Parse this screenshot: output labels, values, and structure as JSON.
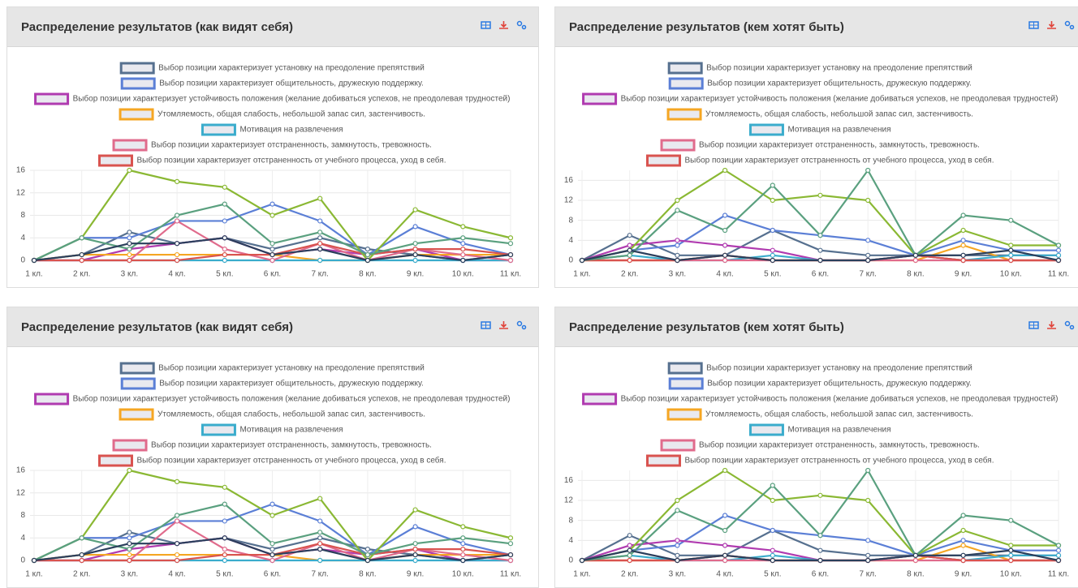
{
  "chart_data": [
    {
      "type": "line",
      "title": "Распределение результатов (как видят себя)",
      "categories": [
        "1 кл.",
        "2 кл.",
        "3 кл.",
        "4 кл.",
        "5 кл.",
        "6 кл.",
        "7 кл.",
        "8 кл.",
        "9 кл.",
        "10 кл.",
        "11 кл."
      ],
      "ylim": [
        0,
        16
      ],
      "yticks": [
        0,
        4,
        8,
        12,
        16
      ],
      "grid": true,
      "series": [
        {
          "name": "Выбор позиции характеризует установку на преодоление препятствий",
          "color": "#56708f",
          "values": [
            0,
            1,
            5,
            3,
            4,
            2,
            4,
            2,
            1,
            0,
            1
          ]
        },
        {
          "name": "Выбор позиции характеризует общительность, дружескую поддержку.",
          "color": "#5b7fd6",
          "values": [
            0,
            4,
            4,
            7,
            7,
            10,
            7,
            1,
            6,
            3,
            1
          ]
        },
        {
          "name": "Выбор позиции характеризует устойчивость положения (желание добиваться успехов, не преодолевая трудностей)",
          "color": "#b03bb0",
          "values": [
            0,
            0,
            2,
            3,
            4,
            1,
            2,
            1,
            2,
            0,
            0
          ]
        },
        {
          "name": "Утомляемость, общая слабость, небольшой запас сил, застенчивость.",
          "color": "#f5a623",
          "values": [
            0,
            1,
            1,
            1,
            1,
            1,
            0,
            0,
            1,
            1,
            1
          ]
        },
        {
          "name": "Мотивация на развлечения",
          "color": "#3aaccc",
          "values": [
            0,
            0,
            0,
            0,
            0,
            0,
            0,
            0,
            0,
            0,
            0
          ]
        },
        {
          "name": "Выбор позиции характеризует отстраненность, замкнутость, тревожность.",
          "color": "#e06b8c",
          "values": [
            0,
            0,
            0,
            7,
            2,
            0,
            3,
            0,
            2,
            1,
            0
          ]
        },
        {
          "name": "Выбор позиции характеризует отстраненность от учебного процесса, уход в себя.",
          "color": "#d9534f",
          "values": [
            0,
            0,
            0,
            0,
            1,
            1,
            3,
            1,
            2,
            2,
            1
          ]
        },
        {
          "color": "#8ab833",
          "values": [
            0,
            4,
            16,
            14,
            13,
            8,
            11,
            0,
            9,
            6,
            4
          ]
        },
        {
          "color": "#5aa07f",
          "values": [
            0,
            4,
            2,
            8,
            10,
            3,
            5,
            1,
            3,
            4,
            3
          ]
        },
        {
          "color": "#2b3f5c",
          "values": [
            0,
            1,
            3,
            3,
            4,
            1,
            2,
            0,
            1,
            0,
            1
          ]
        }
      ]
    },
    {
      "type": "line",
      "title": "Распределение результатов (кем хотят быть)",
      "categories": [
        "1 кл.",
        "2 кл.",
        "3 кл.",
        "4 кл.",
        "5 кл.",
        "6 кл.",
        "7 кл.",
        "8 кл.",
        "9 кл.",
        "10 кл.",
        "11 кл."
      ],
      "ylim": [
        0,
        18
      ],
      "yticks": [
        0,
        4,
        8,
        12,
        16
      ],
      "grid": true,
      "series": [
        {
          "name": "Выбор позиции характеризует установку на преодоление препятствий",
          "color": "#56708f",
          "values": [
            0,
            5,
            1,
            1,
            6,
            2,
            1,
            1,
            1,
            1,
            1
          ]
        },
        {
          "name": "Выбор позиции характеризует общительность, дружескую поддержку.",
          "color": "#5b7fd6",
          "values": [
            0,
            2,
            3,
            9,
            6,
            5,
            4,
            1,
            4,
            2,
            2
          ]
        },
        {
          "name": "Выбор позиции характеризует устойчивость положения (желание добиваться успехов, не преодолевая трудностей)",
          "color": "#b03bb0",
          "values": [
            0,
            3,
            4,
            3,
            2,
            0,
            0,
            1,
            0,
            0,
            0
          ]
        },
        {
          "name": "Утомляемость, общая слабость, небольшой запас сил, застенчивость.",
          "color": "#f5a623",
          "values": [
            0,
            0,
            0,
            1,
            0,
            0,
            0,
            0,
            3,
            0,
            0
          ]
        },
        {
          "name": "Мотивация на развлечения",
          "color": "#3aaccc",
          "values": [
            0,
            1,
            0,
            0,
            1,
            0,
            0,
            1,
            0,
            1,
            1
          ]
        },
        {
          "name": "Выбор позиции характеризует отстраненность, замкнутость, тревожность.",
          "color": "#e06b8c",
          "values": [
            0,
            0,
            0,
            0,
            0,
            0,
            0,
            0,
            0,
            0,
            0
          ]
        },
        {
          "name": "Выбор позиции характеризует отстраненность от учебного процесса, уход в себя.",
          "color": "#d9534f",
          "values": [
            0,
            0,
            0,
            1,
            0,
            0,
            0,
            1,
            0,
            0,
            0
          ]
        },
        {
          "color": "#8ab833",
          "values": [
            0,
            2,
            12,
            18,
            12,
            13,
            12,
            1,
            6,
            3,
            3
          ]
        },
        {
          "color": "#5aa07f",
          "values": [
            0,
            1,
            10,
            6,
            15,
            5,
            18,
            1,
            9,
            8,
            3
          ]
        },
        {
          "color": "#2b3f5c",
          "values": [
            0,
            2,
            0,
            1,
            0,
            0,
            0,
            1,
            1,
            2,
            0
          ]
        }
      ]
    },
    {
      "type": "line",
      "title": "Распределение результатов (как видят себя)",
      "categories": [
        "1 кл.",
        "2 кл.",
        "3 кл.",
        "4 кл.",
        "5 кл.",
        "6 кл.",
        "7 кл.",
        "8 кл.",
        "9 кл.",
        "10 кл.",
        "11 кл."
      ],
      "ylim": [
        0,
        16
      ],
      "yticks": [
        0,
        4,
        8,
        12,
        16
      ],
      "grid": true,
      "series": [
        {
          "name": "Выбор позиции характеризует установку на преодоление препятствий",
          "color": "#56708f",
          "values": [
            0,
            1,
            5,
            3,
            4,
            2,
            4,
            2,
            1,
            0,
            1
          ]
        },
        {
          "name": "Выбор позиции характеризует общительность, дружескую поддержку.",
          "color": "#5b7fd6",
          "values": [
            0,
            4,
            4,
            7,
            7,
            10,
            7,
            1,
            6,
            3,
            1
          ]
        },
        {
          "name": "Выбор позиции характеризует устойчивость положения (желание добиваться успехов, не преодолевая трудностей)",
          "color": "#b03bb0",
          "values": [
            0,
            0,
            2,
            3,
            4,
            1,
            2,
            1,
            2,
            0,
            0
          ]
        },
        {
          "name": "Утомляемость, общая слабость, небольшой запас сил, застенчивость.",
          "color": "#f5a623",
          "values": [
            0,
            1,
            1,
            1,
            1,
            1,
            0,
            0,
            1,
            1,
            1
          ]
        },
        {
          "name": "Мотивация на развлечения",
          "color": "#3aaccc",
          "values": [
            0,
            0,
            0,
            0,
            0,
            0,
            0,
            0,
            0,
            0,
            0
          ]
        },
        {
          "name": "Выбор позиции характеризует отстраненность, замкнутость, тревожность.",
          "color": "#e06b8c",
          "values": [
            0,
            0,
            0,
            7,
            2,
            0,
            3,
            0,
            2,
            1,
            0
          ]
        },
        {
          "name": "Выбор позиции характеризует отстраненность от учебного процесса, уход в себя.",
          "color": "#d9534f",
          "values": [
            0,
            0,
            0,
            0,
            1,
            1,
            3,
            1,
            2,
            2,
            1
          ]
        },
        {
          "color": "#8ab833",
          "values": [
            0,
            4,
            16,
            14,
            13,
            8,
            11,
            0,
            9,
            6,
            4
          ]
        },
        {
          "color": "#5aa07f",
          "values": [
            0,
            4,
            2,
            8,
            10,
            3,
            5,
            1,
            3,
            4,
            3
          ]
        },
        {
          "color": "#2b3f5c",
          "values": [
            0,
            1,
            3,
            3,
            4,
            1,
            2,
            0,
            1,
            0,
            1
          ]
        }
      ]
    },
    {
      "type": "line",
      "title": "Распределение результатов (кем хотят быть)",
      "categories": [
        "1 кл.",
        "2 кл.",
        "3 кл.",
        "4 кл.",
        "5 кл.",
        "6 кл.",
        "7 кл.",
        "8 кл.",
        "9 кл.",
        "10 кл.",
        "11 кл."
      ],
      "ylim": [
        0,
        18
      ],
      "yticks": [
        0,
        4,
        8,
        12,
        16
      ],
      "grid": true,
      "series": [
        {
          "name": "Выбор позиции характеризует установку на преодоление препятствий",
          "color": "#56708f",
          "values": [
            0,
            5,
            1,
            1,
            6,
            2,
            1,
            1,
            1,
            1,
            1
          ]
        },
        {
          "name": "Выбор позиции характеризует общительность, дружескую поддержку.",
          "color": "#5b7fd6",
          "values": [
            0,
            2,
            3,
            9,
            6,
            5,
            4,
            1,
            4,
            2,
            2
          ]
        },
        {
          "name": "Выбор позиции характеризует устойчивость положения (желание добиваться успехов, не преодолевая трудностей)",
          "color": "#b03bb0",
          "values": [
            0,
            3,
            4,
            3,
            2,
            0,
            0,
            1,
            0,
            0,
            0
          ]
        },
        {
          "name": "Утомляемость, общая слабость, небольшой запас сил, застенчивость.",
          "color": "#f5a623",
          "values": [
            0,
            0,
            0,
            1,
            0,
            0,
            0,
            0,
            3,
            0,
            0
          ]
        },
        {
          "name": "Мотивация на развлечения",
          "color": "#3aaccc",
          "values": [
            0,
            1,
            0,
            0,
            1,
            0,
            0,
            1,
            0,
            1,
            1
          ]
        },
        {
          "name": "Выбор позиции характеризует отстраненность, замкнутость, тревожность.",
          "color": "#e06b8c",
          "values": [
            0,
            0,
            0,
            0,
            0,
            0,
            0,
            0,
            0,
            0,
            0
          ]
        },
        {
          "name": "Выбор позиции характеризует отстраненность от учебного процесса, уход в себя.",
          "color": "#d9534f",
          "values": [
            0,
            0,
            0,
            1,
            0,
            0,
            0,
            1,
            0,
            0,
            0
          ]
        },
        {
          "color": "#8ab833",
          "values": [
            0,
            2,
            12,
            18,
            12,
            13,
            12,
            1,
            6,
            3,
            3
          ]
        },
        {
          "color": "#5aa07f",
          "values": [
            0,
            1,
            10,
            6,
            15,
            5,
            18,
            1,
            9,
            8,
            3
          ]
        },
        {
          "color": "#2b3f5c",
          "values": [
            0,
            2,
            0,
            1,
            0,
            0,
            0,
            1,
            1,
            2,
            0
          ]
        }
      ]
    }
  ]
}
